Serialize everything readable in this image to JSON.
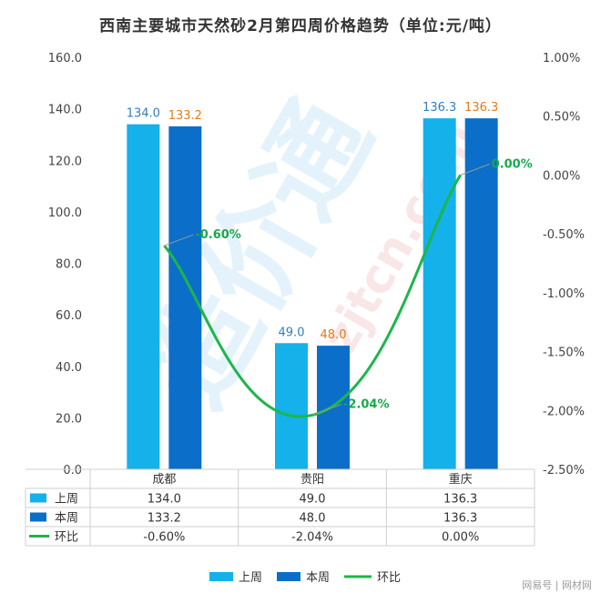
{
  "chart_data": {
    "type": "bar",
    "title": "西南主要城市天然砂2月第四周价格趋势（单位:元/吨）",
    "categories": [
      "成都",
      "贵阳",
      "重庆"
    ],
    "series": [
      {
        "name": "上周",
        "type": "bar",
        "axis": "left",
        "values": [
          134.0,
          49.0,
          136.3
        ],
        "labels": [
          "134.0",
          "49.0",
          "136.3"
        ],
        "color": "#14b1ea"
      },
      {
        "name": "本周",
        "type": "bar",
        "axis": "left",
        "values": [
          133.2,
          48.0,
          136.3
        ],
        "labels": [
          "133.2",
          "48.0",
          "136.3"
        ],
        "color": "#0b6fc9"
      },
      {
        "name": "环比",
        "type": "line",
        "axis": "right",
        "values": [
          -0.6,
          -2.04,
          0.0
        ],
        "labels": [
          "-0.60%",
          "-2.04%",
          "0.00%"
        ],
        "color": "#1db64a"
      }
    ],
    "left_axis": {
      "ylim": [
        0,
        160
      ],
      "ticks": [
        "0.0",
        "20.0",
        "40.0",
        "60.0",
        "80.0",
        "100.0",
        "120.0",
        "140.0",
        "160.0"
      ]
    },
    "right_axis": {
      "ylim": [
        -2.5,
        1.0
      ],
      "ticks": [
        "-2.50%",
        "-2.00%",
        "-1.50%",
        "-1.00%",
        "-0.50%",
        "0.00%",
        "0.50%",
        "1.00%"
      ]
    },
    "data_table": {
      "rows": [
        {
          "name": "上周",
          "cells": [
            "134.0",
            "49.0",
            "136.3"
          ]
        },
        {
          "name": "本周",
          "cells": [
            "133.2",
            "48.0",
            "136.3"
          ]
        },
        {
          "name": "环比",
          "cells": [
            "-0.60%",
            "-2.04%",
            "0.00%"
          ]
        }
      ]
    },
    "legend": {
      "position": "bottom",
      "items": [
        "上周",
        "本周",
        "环比"
      ]
    },
    "label_colors": {
      "上周": "#2e7fc1",
      "本周": "#e07b1a",
      "环比": "#1aa84b"
    },
    "grid": false
  },
  "watermark": {
    "site": "zjtcn.com",
    "brand": "造价通",
    "footer": "网易号 | 网材网"
  }
}
